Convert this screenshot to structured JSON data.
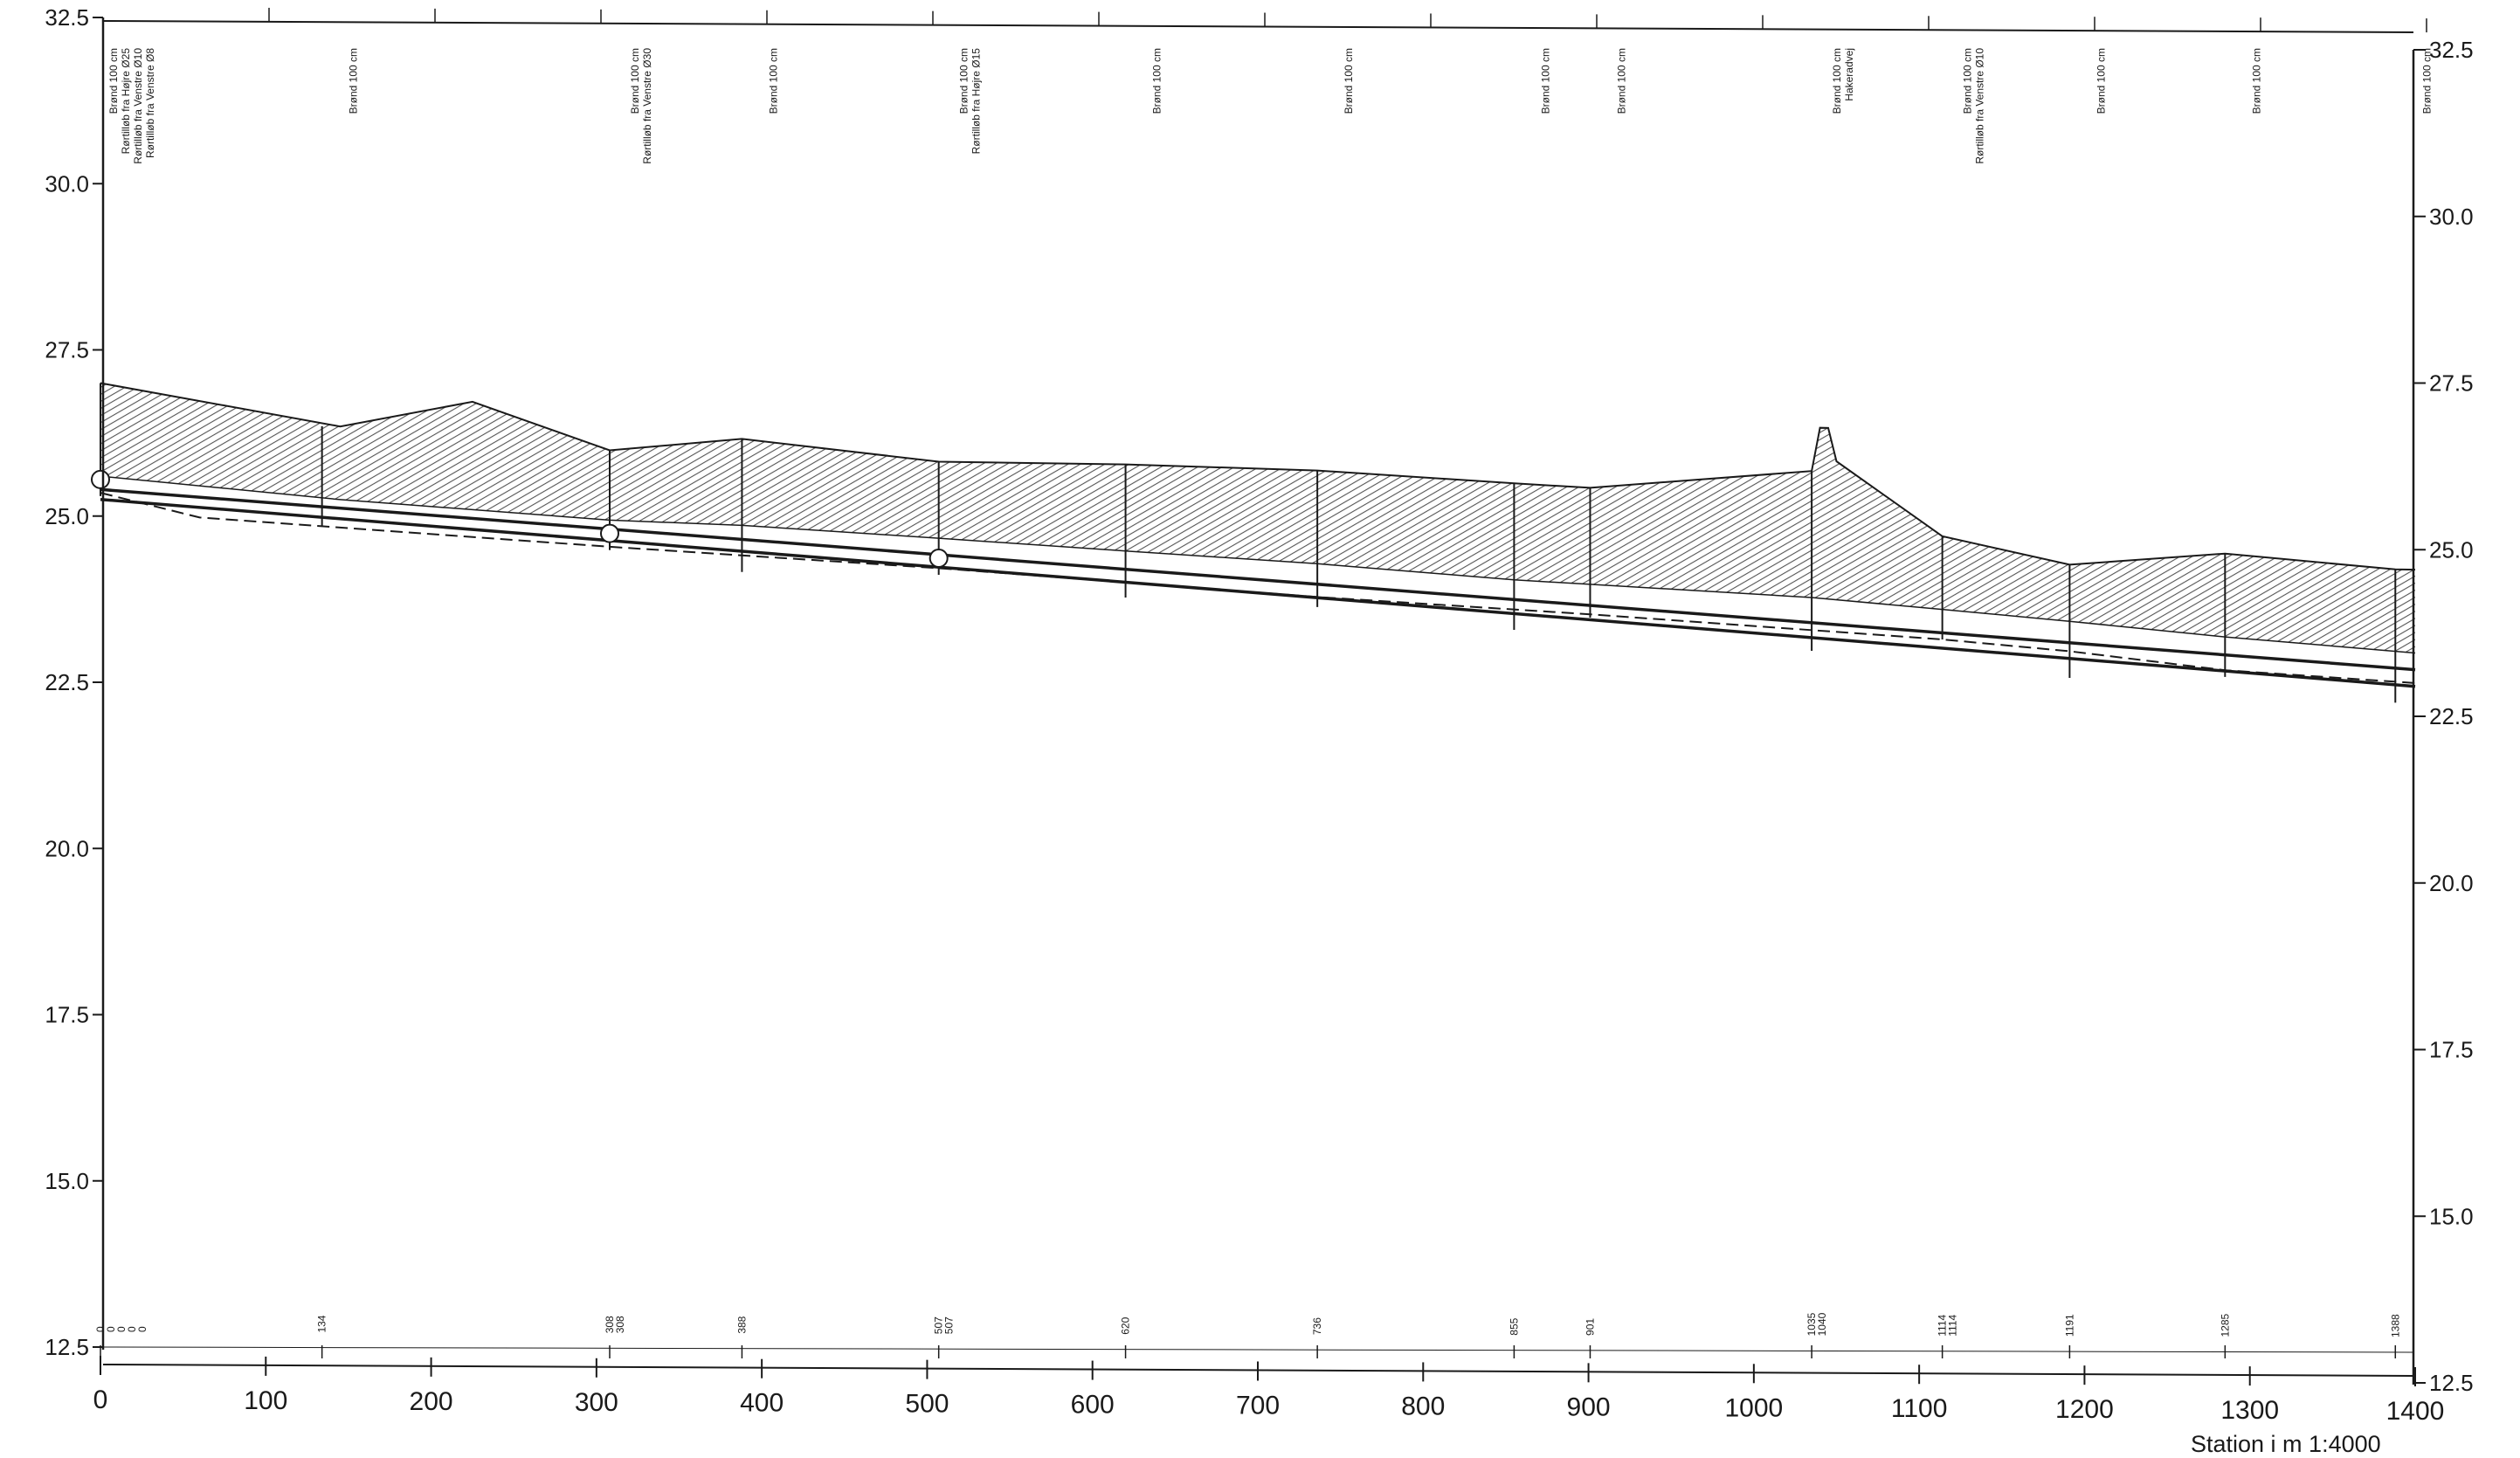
{
  "chart_data": {
    "type": "profile",
    "xlabel": "Station i m  1:4000",
    "x_range": [
      0,
      1400
    ],
    "x_ticks": [
      0,
      100,
      200,
      300,
      400,
      500,
      600,
      700,
      800,
      900,
      1000,
      1100,
      1200,
      1300,
      1400
    ],
    "left_y_range": [
      12.5,
      32.5
    ],
    "left_y_ticks": [
      "12.5",
      "15.0",
      "17.5",
      "20.0",
      "22.5",
      "25.0",
      "27.5",
      "30.0",
      "32.5"
    ],
    "right_y_range": [
      12.5,
      32.5
    ],
    "right_y_ticks": [
      "12.5",
      "15.0",
      "17.5",
      "20.0",
      "22.5",
      "25.0",
      "27.5",
      "30.0",
      "32.5"
    ],
    "grid": false,
    "colors": {
      "ink": "#1a1a1a",
      "hatch": "#555555",
      "background": "#ffffff"
    },
    "terrain": [
      {
        "x": 0,
        "y": 27.0
      },
      {
        "x": 145,
        "y": 26.4
      },
      {
        "x": 225,
        "y": 26.8
      },
      {
        "x": 308,
        "y": 26.1
      },
      {
        "x": 388,
        "y": 26.3
      },
      {
        "x": 507,
        "y": 26.0
      },
      {
        "x": 620,
        "y": 26.0
      },
      {
        "x": 736,
        "y": 25.95
      },
      {
        "x": 855,
        "y": 25.8
      },
      {
        "x": 901,
        "y": 25.75
      },
      {
        "x": 1035,
        "y": 26.05
      },
      {
        "x": 1040,
        "y": 26.7
      },
      {
        "x": 1045,
        "y": 26.7
      },
      {
        "x": 1050,
        "y": 26.2
      },
      {
        "x": 1114,
        "y": 25.1
      },
      {
        "x": 1191,
        "y": 24.7
      },
      {
        "x": 1285,
        "y": 24.9
      },
      {
        "x": 1388,
        "y": 24.7
      },
      {
        "x": 1400,
        "y": 24.7
      }
    ],
    "hatch_bottom": [
      {
        "x": 0,
        "y": 25.6
      },
      {
        "x": 145,
        "y": 25.3
      },
      {
        "x": 308,
        "y": 25.05
      },
      {
        "x": 388,
        "y": 25.0
      },
      {
        "x": 507,
        "y": 24.85
      },
      {
        "x": 620,
        "y": 24.7
      },
      {
        "x": 736,
        "y": 24.55
      },
      {
        "x": 855,
        "y": 24.35
      },
      {
        "x": 901,
        "y": 24.3
      },
      {
        "x": 1035,
        "y": 24.15
      },
      {
        "x": 1114,
        "y": 24.0
      },
      {
        "x": 1191,
        "y": 23.85
      },
      {
        "x": 1285,
        "y": 23.65
      },
      {
        "x": 1400,
        "y": 23.45
      }
    ],
    "pipe_top": [
      {
        "x": 0,
        "y": 25.4
      },
      {
        "x": 1400,
        "y": 23.2
      }
    ],
    "pipe_bottom": [
      {
        "x": 0,
        "y": 25.25
      },
      {
        "x": 1400,
        "y": 22.95
      }
    ],
    "existing_invert_dashed": [
      {
        "x": 0,
        "y": 25.35
      },
      {
        "x": 60,
        "y": 25.0
      },
      {
        "x": 308,
        "y": 24.65
      },
      {
        "x": 507,
        "y": 24.4
      },
      {
        "x": 736,
        "y": 24.05
      },
      {
        "x": 901,
        "y": 23.85
      },
      {
        "x": 1114,
        "y": 23.55
      },
      {
        "x": 1191,
        "y": 23.4
      },
      {
        "x": 1285,
        "y": 23.15
      },
      {
        "x": 1400,
        "y": 23.0
      }
    ],
    "wells": [
      {
        "x": 0,
        "y_top": 27.0,
        "y_bottom": 25.3,
        "marker": true,
        "annotation": [
          "Brønd 100 cm",
          "Rørtilløb fra Højre Ø25",
          "Rørtilløb fra Venstre Ø10",
          "Rørtilløb fra Venstre Ø8"
        ]
      },
      {
        "x": 134,
        "y_top": 26.4,
        "y_bottom": 24.9,
        "marker": false,
        "annotation": [
          "Brønd 100 cm"
        ]
      },
      {
        "x": 308,
        "y_top": 26.1,
        "y_bottom": 24.6,
        "marker": true,
        "annotation": [
          "Brønd 100 cm",
          "Rørtilløb fra Venstre Ø30"
        ]
      },
      {
        "x": 388,
        "y_top": 26.3,
        "y_bottom": 24.3,
        "marker": false,
        "annotation": [
          "Brønd 100 cm"
        ]
      },
      {
        "x": 507,
        "y_top": 26.0,
        "y_bottom": 24.3,
        "marker": true,
        "annotation": [
          "Brønd 100 cm",
          "Rørtilløb fra Højre Ø15"
        ]
      },
      {
        "x": 620,
        "y_top": 26.0,
        "y_bottom": 24.0,
        "marker": false,
        "annotation": [
          "Brønd 100 cm"
        ]
      },
      {
        "x": 736,
        "y_top": 25.95,
        "y_bottom": 23.9,
        "marker": false,
        "annotation": [
          "Brønd 100 cm"
        ]
      },
      {
        "x": 855,
        "y_top": 25.8,
        "y_bottom": 23.6,
        "marker": false,
        "annotation": [
          "Brønd 100 cm"
        ]
      },
      {
        "x": 901,
        "y_top": 25.75,
        "y_bottom": 23.8,
        "marker": false,
        "annotation": [
          "Brønd 100 cm"
        ]
      },
      {
        "x": 1035,
        "y_top": 26.05,
        "y_bottom": 23.35,
        "marker": false,
        "annotation": [
          "Brønd 100 cm",
          "Hakeradvej"
        ]
      },
      {
        "x": 1114,
        "y_top": 25.1,
        "y_bottom": 23.55,
        "marker": false,
        "annotation": [
          "Brønd 100 cm",
          "Rørtilløb fra Venstre Ø10"
        ]
      },
      {
        "x": 1191,
        "y_top": 24.7,
        "y_bottom": 23.0,
        "marker": false,
        "annotation": [
          "Brønd 100 cm"
        ]
      },
      {
        "x": 1285,
        "y_top": 24.9,
        "y_bottom": 23.05,
        "marker": false,
        "annotation": [
          "Brønd 100 cm"
        ]
      },
      {
        "x": 1388,
        "y_top": 24.7,
        "y_bottom": 22.7,
        "marker": false,
        "annotation": [
          "Brønd 100 cm"
        ]
      }
    ],
    "station_labels": [
      {
        "x": 0,
        "lines": [
          "0",
          "0",
          "0",
          "0",
          "0"
        ]
      },
      {
        "x": 134,
        "lines": [
          "134"
        ]
      },
      {
        "x": 308,
        "lines": [
          "308",
          "308"
        ]
      },
      {
        "x": 388,
        "lines": [
          "388"
        ]
      },
      {
        "x": 507,
        "lines": [
          "507",
          "507"
        ]
      },
      {
        "x": 620,
        "lines": [
          "620"
        ]
      },
      {
        "x": 736,
        "lines": [
          "736"
        ]
      },
      {
        "x": 855,
        "lines": [
          "855"
        ]
      },
      {
        "x": 901,
        "lines": [
          "901"
        ]
      },
      {
        "x": 1035,
        "lines": [
          "1035",
          "1040"
        ]
      },
      {
        "x": 1114,
        "lines": [
          "1114",
          "1114"
        ]
      },
      {
        "x": 1191,
        "lines": [
          "1191"
        ]
      },
      {
        "x": 1285,
        "lines": [
          "1285"
        ]
      },
      {
        "x": 1388,
        "lines": [
          "1388"
        ]
      }
    ]
  }
}
